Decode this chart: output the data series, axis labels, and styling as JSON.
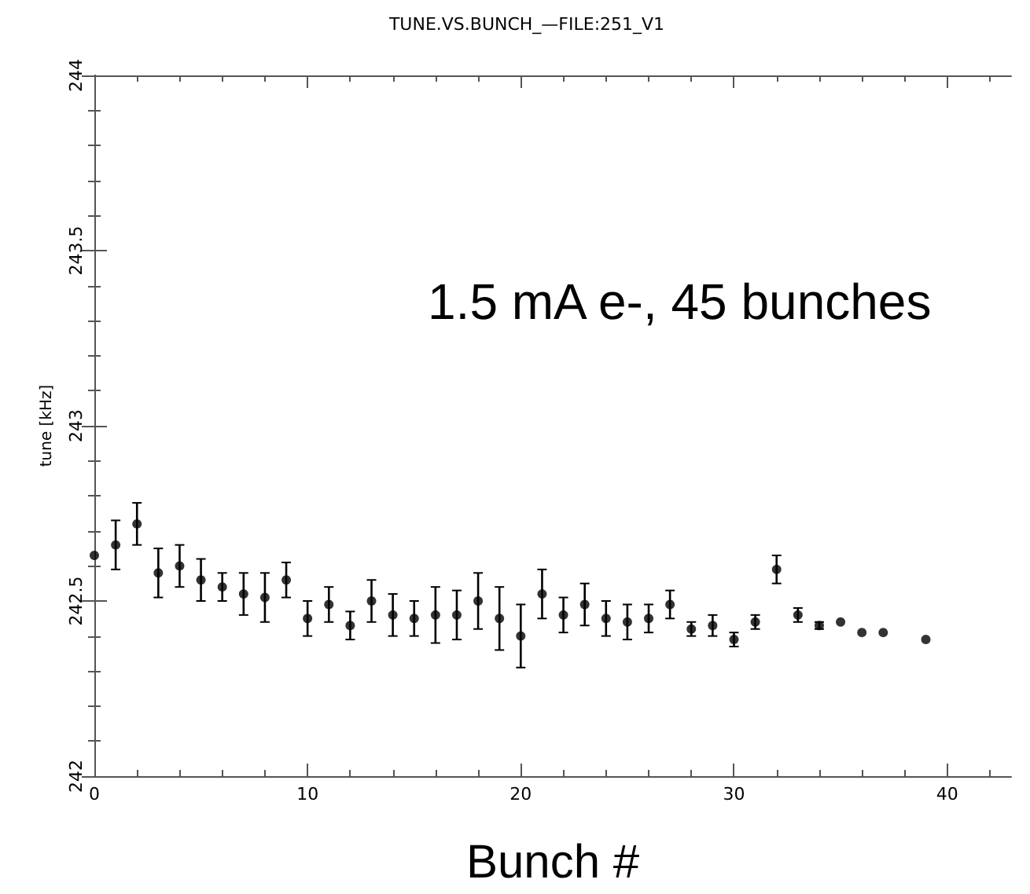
{
  "chart_data": {
    "type": "scatter",
    "title": "TUNE.VS.BUNCH_—FILE:251_V1",
    "xlabel": "Bunch #",
    "ylabel": "tune [kHz]",
    "annotations": [
      "1.5 mA e-, 45 bunches"
    ],
    "x": [
      0,
      1,
      2,
      3,
      4,
      5,
      6,
      7,
      8,
      9,
      10,
      11,
      12,
      13,
      14,
      15,
      16,
      17,
      18,
      19,
      20,
      21,
      22,
      23,
      24,
      25,
      26,
      27,
      28,
      29,
      30,
      31,
      32,
      33,
      34,
      35,
      36,
      37,
      39
    ],
    "values": [
      242.63,
      242.66,
      242.72,
      242.58,
      242.6,
      242.56,
      242.54,
      242.52,
      242.51,
      242.56,
      242.45,
      242.49,
      242.43,
      242.5,
      242.46,
      242.45,
      242.46,
      242.46,
      242.5,
      242.45,
      242.4,
      242.52,
      242.46,
      242.49,
      242.45,
      242.44,
      242.45,
      242.49,
      242.42,
      242.43,
      242.39,
      242.44,
      242.59,
      242.46,
      242.43,
      242.44,
      242.41,
      242.41,
      242.39
    ],
    "errors": [
      null,
      0.07,
      0.06,
      0.07,
      0.06,
      0.06,
      0.04,
      0.06,
      0.07,
      0.05,
      0.05,
      0.05,
      0.04,
      0.06,
      0.06,
      0.05,
      0.08,
      0.07,
      0.08,
      0.09,
      0.09,
      0.07,
      0.05,
      0.06,
      0.05,
      0.05,
      0.04,
      0.04,
      0.02,
      0.03,
      0.02,
      0.02,
      0.04,
      0.02,
      0.01,
      null,
      null,
      null,
      null
    ],
    "color": "#000000",
    "marker": "circle",
    "xlim": [
      0,
      43
    ],
    "xticks": [
      0,
      10,
      20,
      30,
      40
    ],
    "ylim": [
      242,
      244
    ],
    "yticks": [
      242,
      242.5,
      243,
      243.5,
      244
    ],
    "grid": false
  }
}
